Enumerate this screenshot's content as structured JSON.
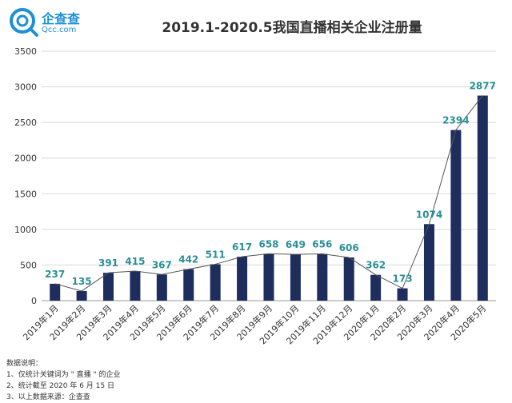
{
  "logo": {
    "name_cn": "企查查",
    "name_en": "Qcc.com",
    "icon": "qcc-logo-icon"
  },
  "chart_data": {
    "type": "bar",
    "title": "2019.1-2020.5我国直播相关企业注册量",
    "categories": [
      "2019年1月",
      "2019年2月",
      "2019年3月",
      "2019年4月",
      "2019年5月",
      "2019年6月",
      "2019年7月",
      "2019年8月",
      "2019年9月",
      "2019年10月",
      "2019年11月",
      "2019年12月",
      "2020年1月",
      "2020年2月",
      "2020年3月",
      "2020年4月",
      "2020年5月"
    ],
    "values": [
      237,
      135,
      391,
      415,
      367,
      442,
      511,
      617,
      658,
      649,
      656,
      606,
      362,
      173,
      1074,
      2394,
      2877
    ],
    "ylim": [
      0,
      3500
    ],
    "yticks": [
      0,
      500,
      1000,
      1500,
      2000,
      2500,
      3000,
      3500
    ],
    "grid": true,
    "overlay_line": true,
    "colors": {
      "bar": "#1e2d5c",
      "label": "#2a8f96",
      "line": "#555555",
      "grid": "#d9d9d9"
    }
  },
  "notes": {
    "heading": "数据说明：",
    "items": [
      "1、仅统计关键词为 \" 直播 \" 的企业",
      "2、统计截至 2020 年 6 月 15 日",
      "3、以上数据来源：企查查"
    ]
  }
}
